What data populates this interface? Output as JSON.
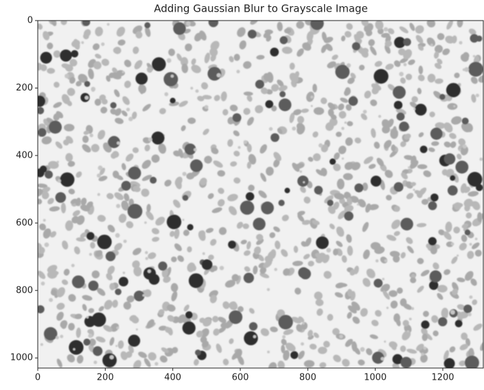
{
  "chart_data": {
    "type": "image",
    "title": "Adding Gaussian Blur to Grayscale Image",
    "xlim": [
      0,
      1320
    ],
    "ylim": [
      0,
      1030
    ],
    "y_inverted": true,
    "xticks": [
      0,
      200,
      400,
      600,
      800,
      1000,
      1200
    ],
    "yticks": [
      0,
      200,
      400,
      600,
      800,
      1000
    ]
  }
}
